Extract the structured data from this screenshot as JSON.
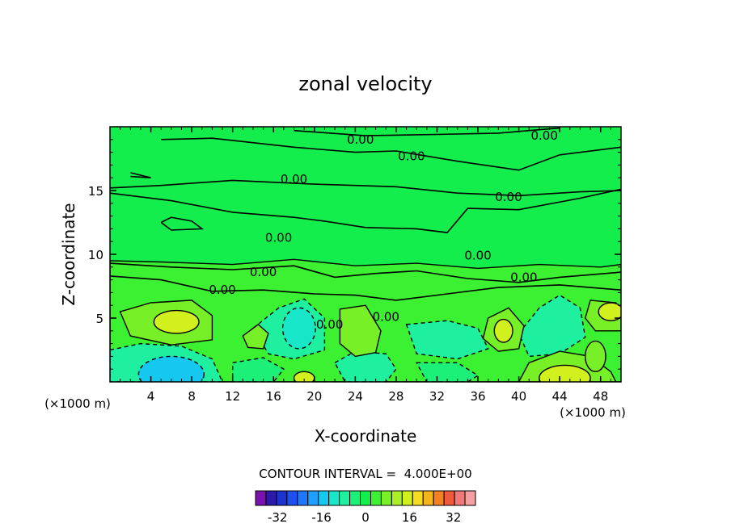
{
  "chart_data": {
    "type": "contour",
    "title": "zonal velocity",
    "xlabel": "X-coordinate",
    "ylabel": "Z-coordinate",
    "x_unit": "(×1000 m)",
    "z_unit": "(×1000 m)",
    "xlim": [
      0,
      50
    ],
    "ylim": [
      0,
      20
    ],
    "x_ticks": [
      4,
      8,
      12,
      16,
      20,
      24,
      28,
      32,
      36,
      40,
      44,
      48
    ],
    "y_ticks": [
      5,
      10,
      15
    ],
    "contour_interval_text": "CONTOUR INTERVAL =  4.000E+00",
    "contour_labels": [
      {
        "text": "0.00",
        "x": 24.5,
        "z": 19.0
      },
      {
        "text": "0.00",
        "x": 42.5,
        "z": 19.3
      },
      {
        "text": "0.00",
        "x": 29.5,
        "z": 17.7
      },
      {
        "text": "0.00",
        "x": 18.0,
        "z": 15.9
      },
      {
        "text": "0.00",
        "x": 39.0,
        "z": 14.5
      },
      {
        "text": "0.00",
        "x": 16.5,
        "z": 11.3
      },
      {
        "text": "0.00",
        "x": 36.0,
        "z": 9.9
      },
      {
        "text": "0.00",
        "x": 15.0,
        "z": 8.6
      },
      {
        "text": "0.00",
        "x": 40.5,
        "z": 8.2
      },
      {
        "text": "0.00",
        "x": 11.0,
        "z": 7.2
      },
      {
        "text": "0.00",
        "x": 27.0,
        "z": 5.1
      },
      {
        "text": "0.00",
        "x": 21.5,
        "z": 4.5
      }
    ],
    "colorbar": {
      "tick_labels": [
        "-32",
        "-16",
        "0",
        "16",
        "32"
      ],
      "tick_values": [
        -32,
        -16,
        0,
        16,
        32
      ],
      "levels": [
        -40,
        -36,
        -32,
        -28,
        -24,
        -20,
        -16,
        -12,
        -8,
        -4,
        0,
        4,
        8,
        12,
        16,
        20,
        24,
        28,
        32,
        36,
        40
      ],
      "colors": [
        "#7a12b0",
        "#2d1aa8",
        "#1e32d2",
        "#1e50f0",
        "#1e78ff",
        "#1ea0ff",
        "#14c8f0",
        "#18e6c8",
        "#1ef0a0",
        "#1cf078",
        "#14ee4c",
        "#3cf032",
        "#78f028",
        "#aaf028",
        "#d2f01e",
        "#f5dc1e",
        "#f5b41e",
        "#f5821e",
        "#ef5a3c",
        "#f07878",
        "#f5a0a0"
      ]
    },
    "colors": {
      "background_field": "#14ee4c",
      "light_positive": "#3cf032",
      "mid_positive": "#78f028",
      "strong_positive": "#d2f01e",
      "light_negative": "#1cf078",
      "mid_negative": "#1ef0a0",
      "strong_negative": "#18e6c8",
      "stronger_negative": "#14c8f0"
    }
  }
}
